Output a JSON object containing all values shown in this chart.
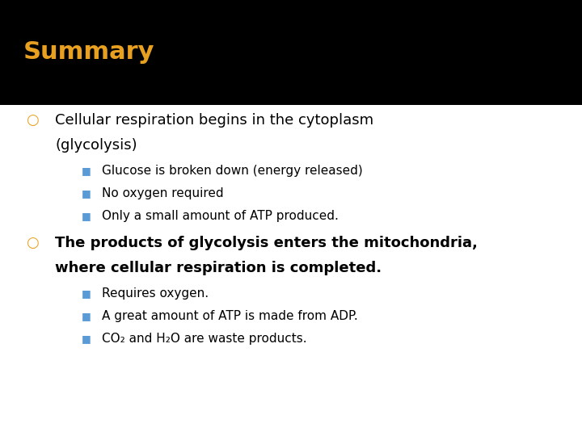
{
  "title": "Summary",
  "title_color": "#E8A020",
  "title_bg_color": "#000000",
  "body_bg_color": "#FFFFFF",
  "bullet1_color": "#E8A020",
  "bullet2_color": "#5B9BD5",
  "main_text_color": "#000000",
  "title_fontsize": 22,
  "main_bullet_fontsize": 13,
  "sub_bullet_fontsize": 11,
  "title_bar_height": 0.24,
  "main_bullets": [
    {
      "text_line1": "Cellular respiration begins in the cytoplasm",
      "text_line2": "(glycolysis)",
      "bold": false,
      "sub_bullets": [
        "Glucose is broken down (energy released)",
        "No oxygen required",
        "Only a small amount of ATP produced."
      ]
    },
    {
      "text_line1": "The products of glycolysis enters the mitochondria,",
      "text_line2": "where cellular respiration is completed.",
      "bold": true,
      "sub_bullets": [
        "Requires oxygen.",
        "A great amount of ATP is made from ADP.",
        "CO₂ and H₂O are waste products."
      ]
    }
  ]
}
